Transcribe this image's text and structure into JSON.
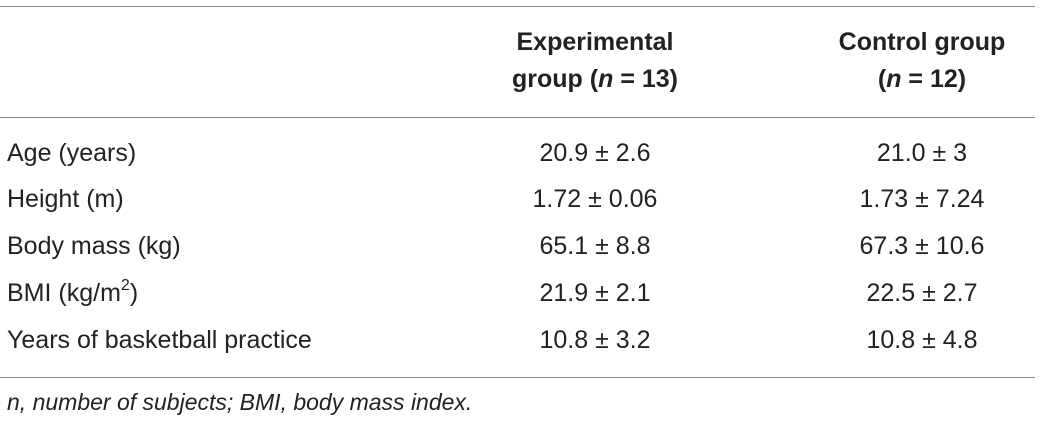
{
  "table": {
    "headers": {
      "col1_line1": "Experimental",
      "col1_line2_prefix": "group (",
      "col1_n": "n",
      "col1_line2_suffix": " = 13)",
      "col2_line1": "Control group",
      "col2_line2_prefix": "(",
      "col2_n": "n",
      "col2_line2_suffix": " = 12)"
    },
    "rows": [
      {
        "label": "Age (years)",
        "experimental": "20.9 ± 2.6",
        "control": "21.0 ± 3"
      },
      {
        "label": "Height (m)",
        "experimental": "1.72 ± 0.06",
        "control": "1.73 ± 7.24"
      },
      {
        "label": "Body mass (kg)",
        "experimental": "65.1 ± 8.8",
        "control": "67.3 ± 10.6"
      },
      {
        "label_prefix": "BMI (kg/m",
        "label_sup": "2",
        "label_suffix": ")",
        "experimental": "21.9 ± 2.1",
        "control": "22.5 ± 2.7"
      },
      {
        "label": "Years of basketball practice",
        "experimental": "10.8 ± 3.2",
        "control": "10.8 ± 4.8"
      }
    ],
    "footnote": "n, number of subjects; BMI, body mass index."
  }
}
